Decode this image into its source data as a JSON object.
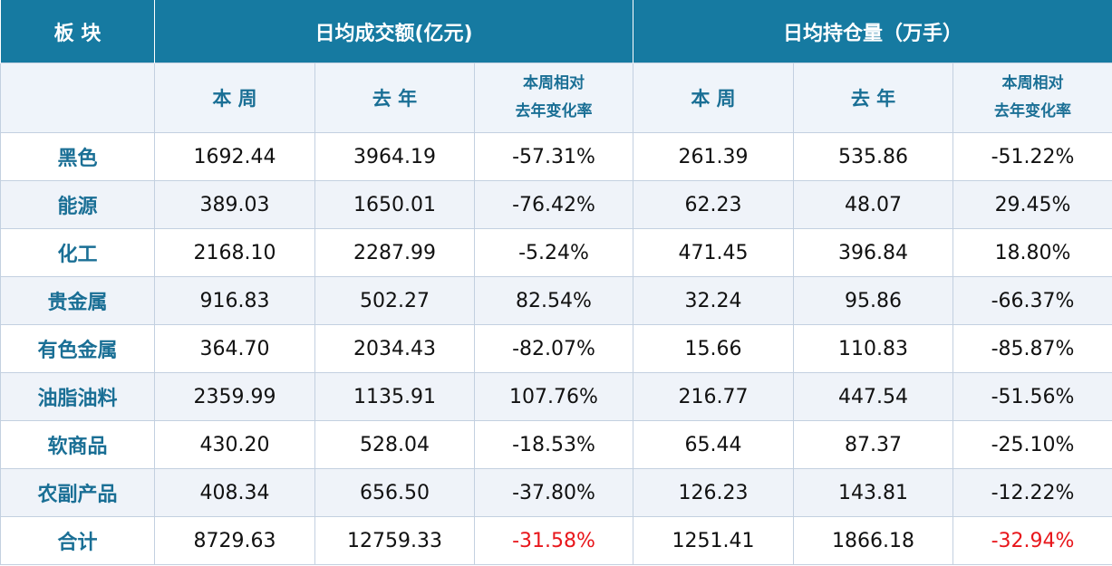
{
  "table": {
    "corner": "板 块",
    "groups": [
      "日均成交额(亿元)",
      "日均持仓量（万手）"
    ],
    "subheaders": [
      "本 周",
      "去 年",
      "本周相对\n去年变化率",
      "本 周",
      "去 年",
      "本周相对\n去年变化率"
    ],
    "rows": [
      [
        "黑色",
        "1692.44",
        "3964.19",
        "-57.31%",
        "261.39",
        "535.86",
        "-51.22%"
      ],
      [
        "能源",
        "389.03",
        "1650.01",
        "-76.42%",
        "62.23",
        "48.07",
        "29.45%"
      ],
      [
        "化工",
        "2168.10",
        "2287.99",
        "-5.24%",
        "471.45",
        "396.84",
        "18.80%"
      ],
      [
        "贵金属",
        "916.83",
        "502.27",
        "82.54%",
        "32.24",
        "95.86",
        "-66.37%"
      ],
      [
        "有色金属",
        "364.70",
        "2034.43",
        "-82.07%",
        "15.66",
        "110.83",
        "-85.87%"
      ],
      [
        "油脂油料",
        "2359.99",
        "1135.91",
        "107.76%",
        "216.77",
        "447.54",
        "-51.56%"
      ],
      [
        "软商品",
        "430.20",
        "528.04",
        "-18.53%",
        "65.44",
        "87.37",
        "-25.10%"
      ],
      [
        "农副产品",
        "408.34",
        "656.50",
        "-37.80%",
        "126.23",
        "143.81",
        "-12.22%"
      ],
      [
        "合计",
        "8729.63",
        "12759.33",
        "-31.58%",
        "1251.41",
        "1866.18",
        "-32.94%"
      ]
    ]
  }
}
